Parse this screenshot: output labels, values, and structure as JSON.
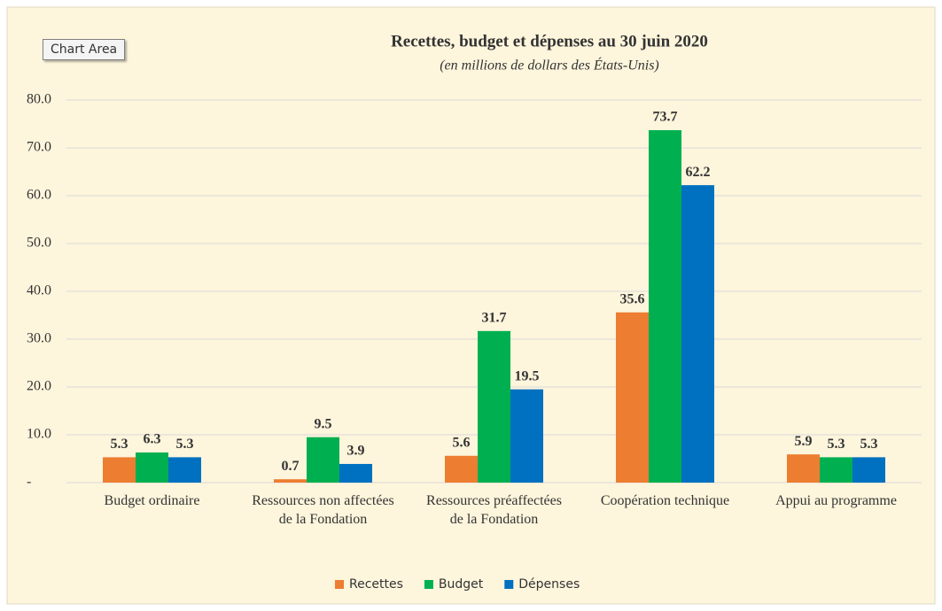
{
  "tooltip": "Chart Area",
  "chart_data": {
    "type": "bar",
    "title": "Recettes, budget et dépenses au 30 juin 2020",
    "subtitle": "(en millions de dollars des États-Unis)",
    "categories": [
      "Budget ordinaire",
      "Ressources non affectées de la Fondation",
      "Ressources préaffectées de la Fondation",
      "Coopération technique",
      "Appui au programme"
    ],
    "series": [
      {
        "name": "Recettes",
        "color": "#ed7d31",
        "values": [
          5.3,
          0.7,
          5.6,
          35.6,
          5.9
        ]
      },
      {
        "name": "Budget",
        "color": "#00b050",
        "values": [
          6.3,
          9.5,
          31.7,
          73.7,
          5.3
        ]
      },
      {
        "name": "Dépenses",
        "color": "#0070c0",
        "values": [
          5.3,
          3.9,
          19.5,
          62.2,
          5.3
        ]
      }
    ],
    "ylim": [
      0,
      80
    ],
    "yticks": [
      {
        "value": 0,
        "label": "-"
      },
      {
        "value": 10,
        "label": "10.0"
      },
      {
        "value": 20,
        "label": "20.0"
      },
      {
        "value": 30,
        "label": "30.0"
      },
      {
        "value": 40,
        "label": "40.0"
      },
      {
        "value": 50,
        "label": "50.0"
      },
      {
        "value": 60,
        "label": "60.0"
      },
      {
        "value": 70,
        "label": "70.0"
      },
      {
        "value": 80,
        "label": "80.0"
      }
    ],
    "grid": true,
    "legend": "bottom"
  }
}
